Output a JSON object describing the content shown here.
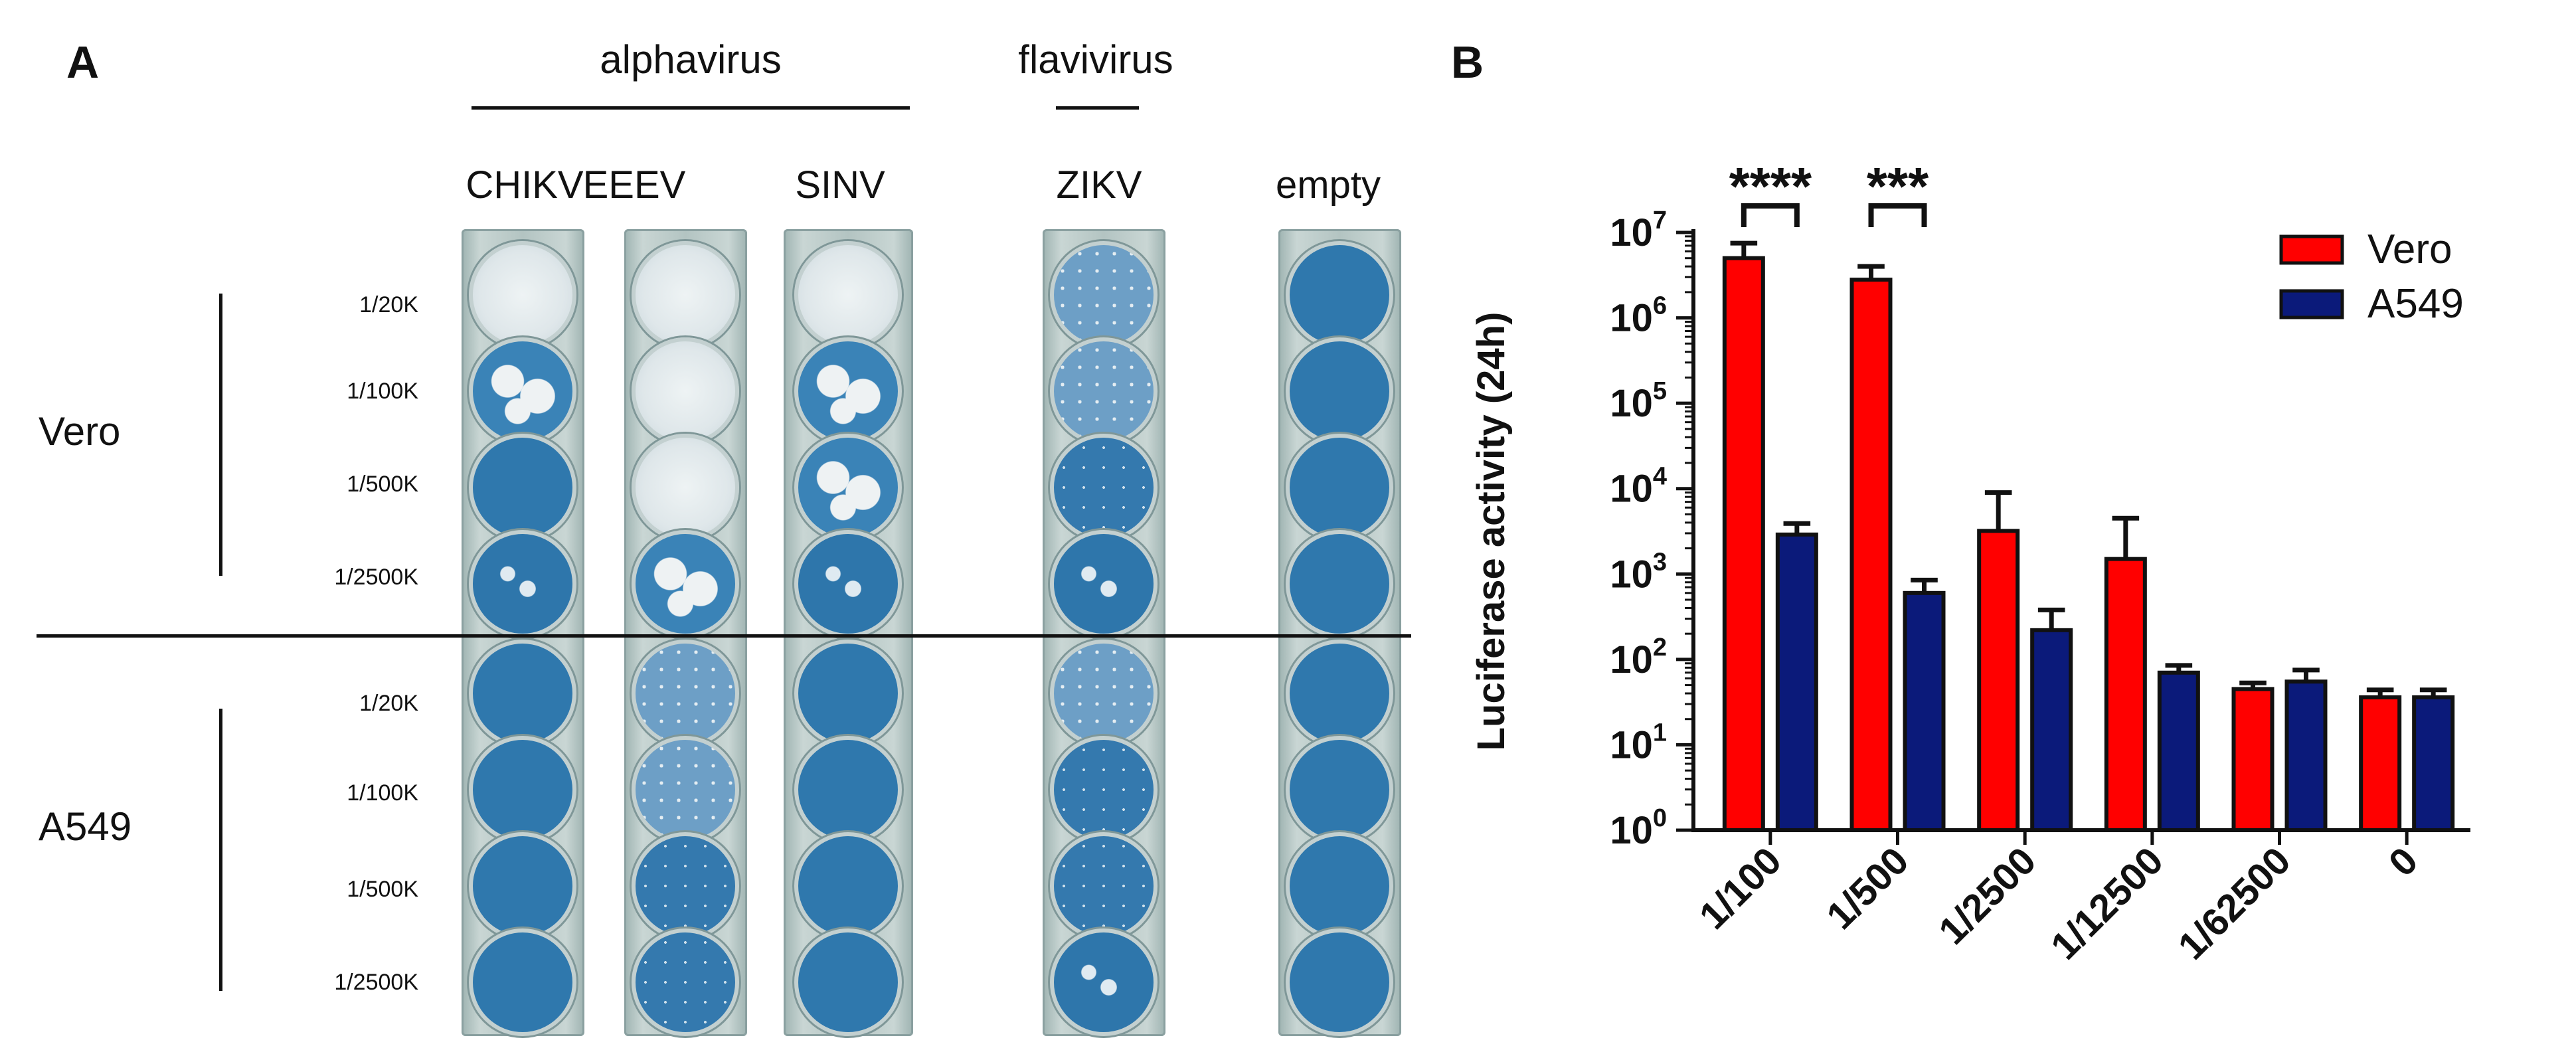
{
  "panel_a": {
    "label": "A",
    "groups": [
      {
        "label": "alphavirus"
      },
      {
        "label": "flavivirus"
      }
    ],
    "columns": [
      "CHIKV",
      "EEEV",
      "SINV",
      "ZIKV",
      "empty"
    ],
    "cell_lines": [
      "Vero",
      "A549"
    ],
    "dilutions": [
      "1/20K",
      "1/100K",
      "1/500K",
      "1/2500K"
    ]
  },
  "chart_data": {
    "panel_label": "B",
    "type": "bar",
    "yscale": "log10",
    "ylabel": "Luciferase activity (24h)",
    "ylim": [
      1,
      10000000
    ],
    "yticks": [
      {
        "base": "10",
        "exp": "0",
        "value": 1
      },
      {
        "base": "10",
        "exp": "1",
        "value": 10
      },
      {
        "base": "10",
        "exp": "2",
        "value": 100
      },
      {
        "base": "10",
        "exp": "3",
        "value": 1000
      },
      {
        "base": "10",
        "exp": "4",
        "value": 10000
      },
      {
        "base": "10",
        "exp": "5",
        "value": 100000
      },
      {
        "base": "10",
        "exp": "6",
        "value": 1000000
      },
      {
        "base": "10",
        "exp": "7",
        "value": 10000000
      }
    ],
    "categories": [
      "1/100",
      "1/500",
      "1/2500",
      "1/12500",
      "1/62500",
      "0"
    ],
    "series": [
      {
        "name": "Vero",
        "color": "#ff0000",
        "values": [
          5000000,
          2800000,
          3200,
          1500,
          45,
          36
        ],
        "error": [
          7500000,
          4000000,
          9000,
          4500,
          53,
          44
        ]
      },
      {
        "name": "A549",
        "color": "#0b1a7a",
        "values": [
          2900,
          600,
          220,
          70,
          55,
          36
        ],
        "error": [
          3900,
          850,
          380,
          85,
          75,
          44
        ]
      }
    ],
    "significance": [
      {
        "category_index": 0,
        "label": "****"
      },
      {
        "category_index": 1,
        "label": "***"
      }
    ],
    "legend": {
      "position": "top-right"
    }
  }
}
